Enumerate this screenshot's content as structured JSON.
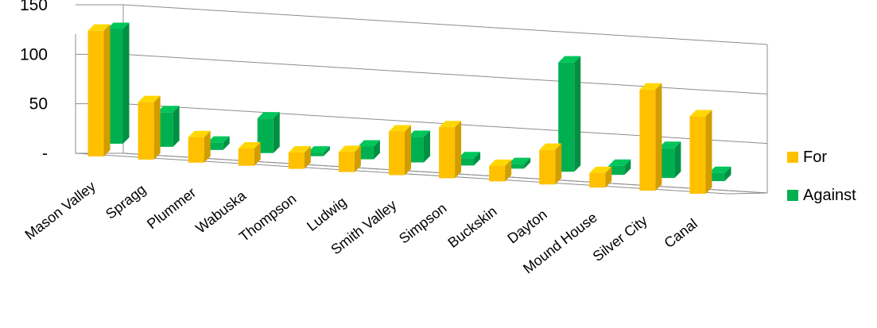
{
  "chart_data": {
    "type": "bar",
    "categories": [
      "Mason Valley",
      "Spragg",
      "Plummer",
      "Wabuska",
      "Thompson",
      "Ludwig",
      "Smith Valley",
      "Simpson",
      "Buckskin",
      "Dayton",
      "Mound House",
      "Silver City",
      "Canal"
    ],
    "series": [
      {
        "name": "For",
        "color": "#FFC000",
        "values": [
          138,
          63,
          28,
          19,
          18,
          22,
          48,
          56,
          17,
          38,
          16,
          111,
          85
        ]
      },
      {
        "name": "Against",
        "color": "#00B050",
        "values": [
          126,
          38,
          8,
          38,
          4,
          14,
          28,
          8,
          5,
          120,
          10,
          33,
          9
        ]
      }
    ],
    "y_ticks": [
      "150",
      "100",
      "50",
      "-"
    ],
    "ylim": [
      0,
      150
    ],
    "grid": true,
    "legend_position": "right"
  }
}
